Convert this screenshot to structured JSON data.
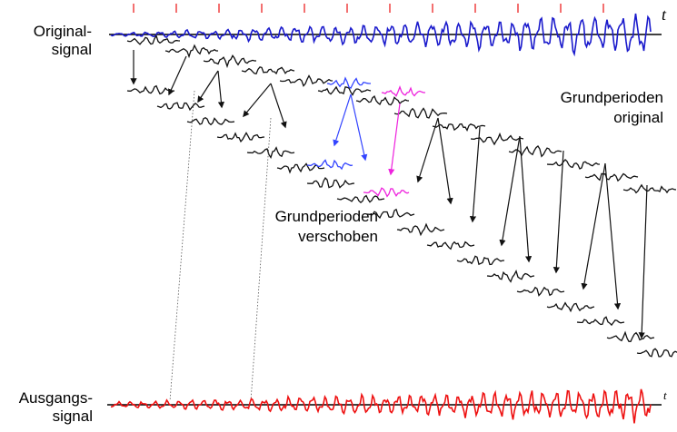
{
  "labels": {
    "original_signal": [
      "Original-",
      "signal"
    ],
    "output_signal": [
      "Ausgangs-",
      "signal"
    ],
    "periods_original": [
      "Grundperioden",
      "original"
    ],
    "periods_shifted": [
      "Grundperioden",
      "verschoben"
    ],
    "time_axis_top": "t",
    "time_axis_bottom": "t"
  },
  "colors": {
    "original": "#1a1acc",
    "output": "#ee1111",
    "marker": "#ee3333",
    "highlight_blue": "#3344ff",
    "highlight_magenta": "#ee22dd",
    "period": "#111111"
  },
  "period_marker_count": 12
}
